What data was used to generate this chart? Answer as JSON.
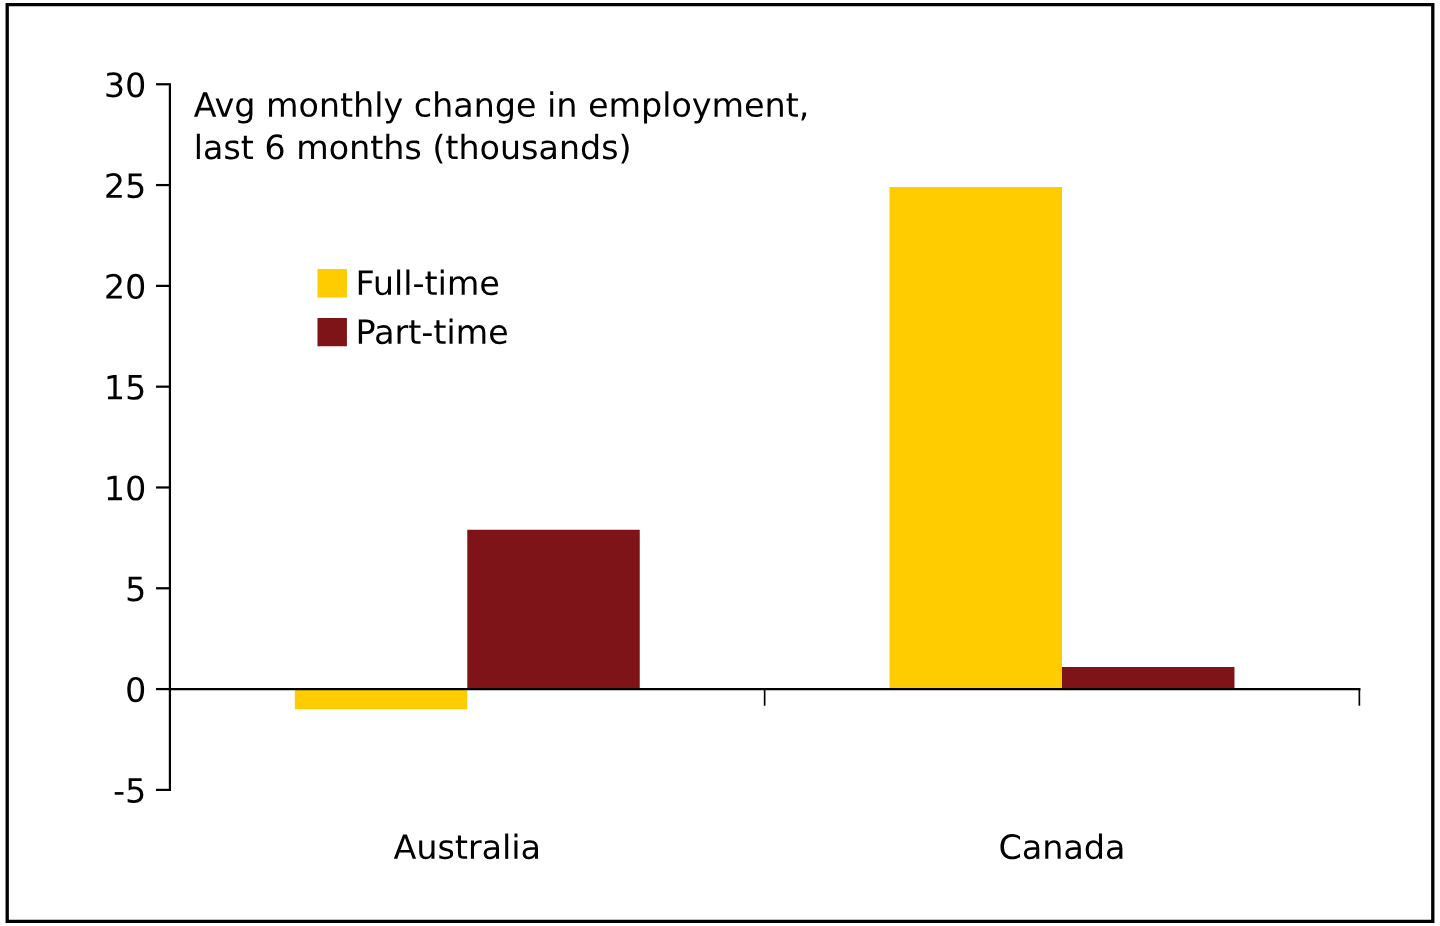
{
  "chart_data": {
    "type": "bar",
    "title": "Avg monthly change in employment,\nlast 6 months (thousands)",
    "categories": [
      "Australia",
      "Canada"
    ],
    "series": [
      {
        "name": "Full-time",
        "color": "#ffcc00",
        "values": [
          -1,
          24.9
        ]
      },
      {
        "name": "Part-time",
        "color": "#7f1418",
        "values": [
          7.9,
          1.1
        ]
      }
    ],
    "ylim": [
      -5,
      30
    ],
    "yticks": [
      -5,
      0,
      5,
      10,
      15,
      20,
      25,
      30
    ],
    "legend": "top left"
  }
}
